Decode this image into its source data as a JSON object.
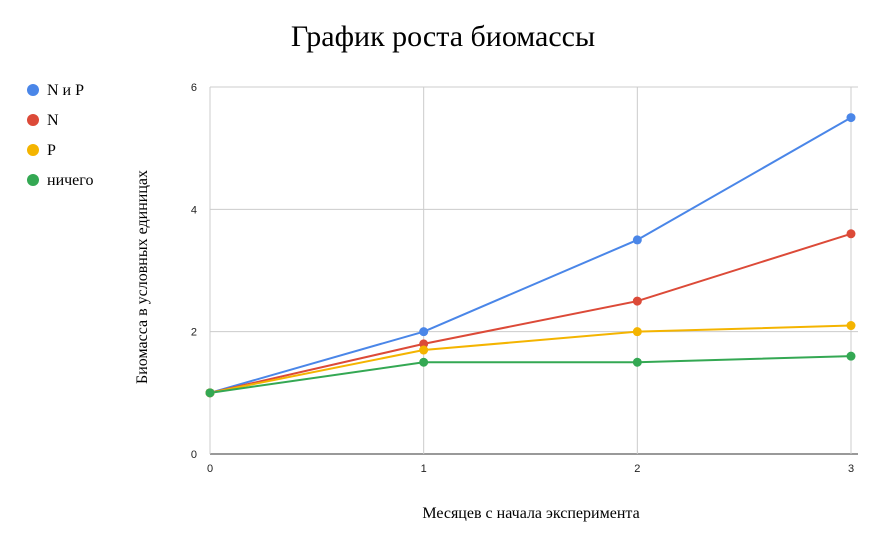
{
  "chart_data": {
    "type": "line",
    "title": "График роста биомассы",
    "xlabel": "Месяцев с начала эксперимента",
    "ylabel": "Биомасса в условных единицах",
    "x": [
      0,
      1,
      2,
      3
    ],
    "x_ticks": [
      "0",
      "1",
      "2",
      "3"
    ],
    "y_ticks": [
      "0",
      "2",
      "4",
      "6"
    ],
    "xlim": [
      0,
      3
    ],
    "ylim": [
      0,
      6
    ],
    "grid": true,
    "legend_position": "left",
    "series": [
      {
        "name": "N и P",
        "color": "#4a86e8",
        "values": [
          1,
          2,
          3.5,
          5.5
        ]
      },
      {
        "name": "N",
        "color": "#dc4a38",
        "values": [
          1,
          1.8,
          2.5,
          3.6
        ]
      },
      {
        "name": "P",
        "color": "#f4b400",
        "values": [
          1,
          1.7,
          2,
          2.1
        ]
      },
      {
        "name": "ничего",
        "color": "#34a853",
        "values": [
          1,
          1.5,
          1.5,
          1.6
        ]
      }
    ]
  }
}
